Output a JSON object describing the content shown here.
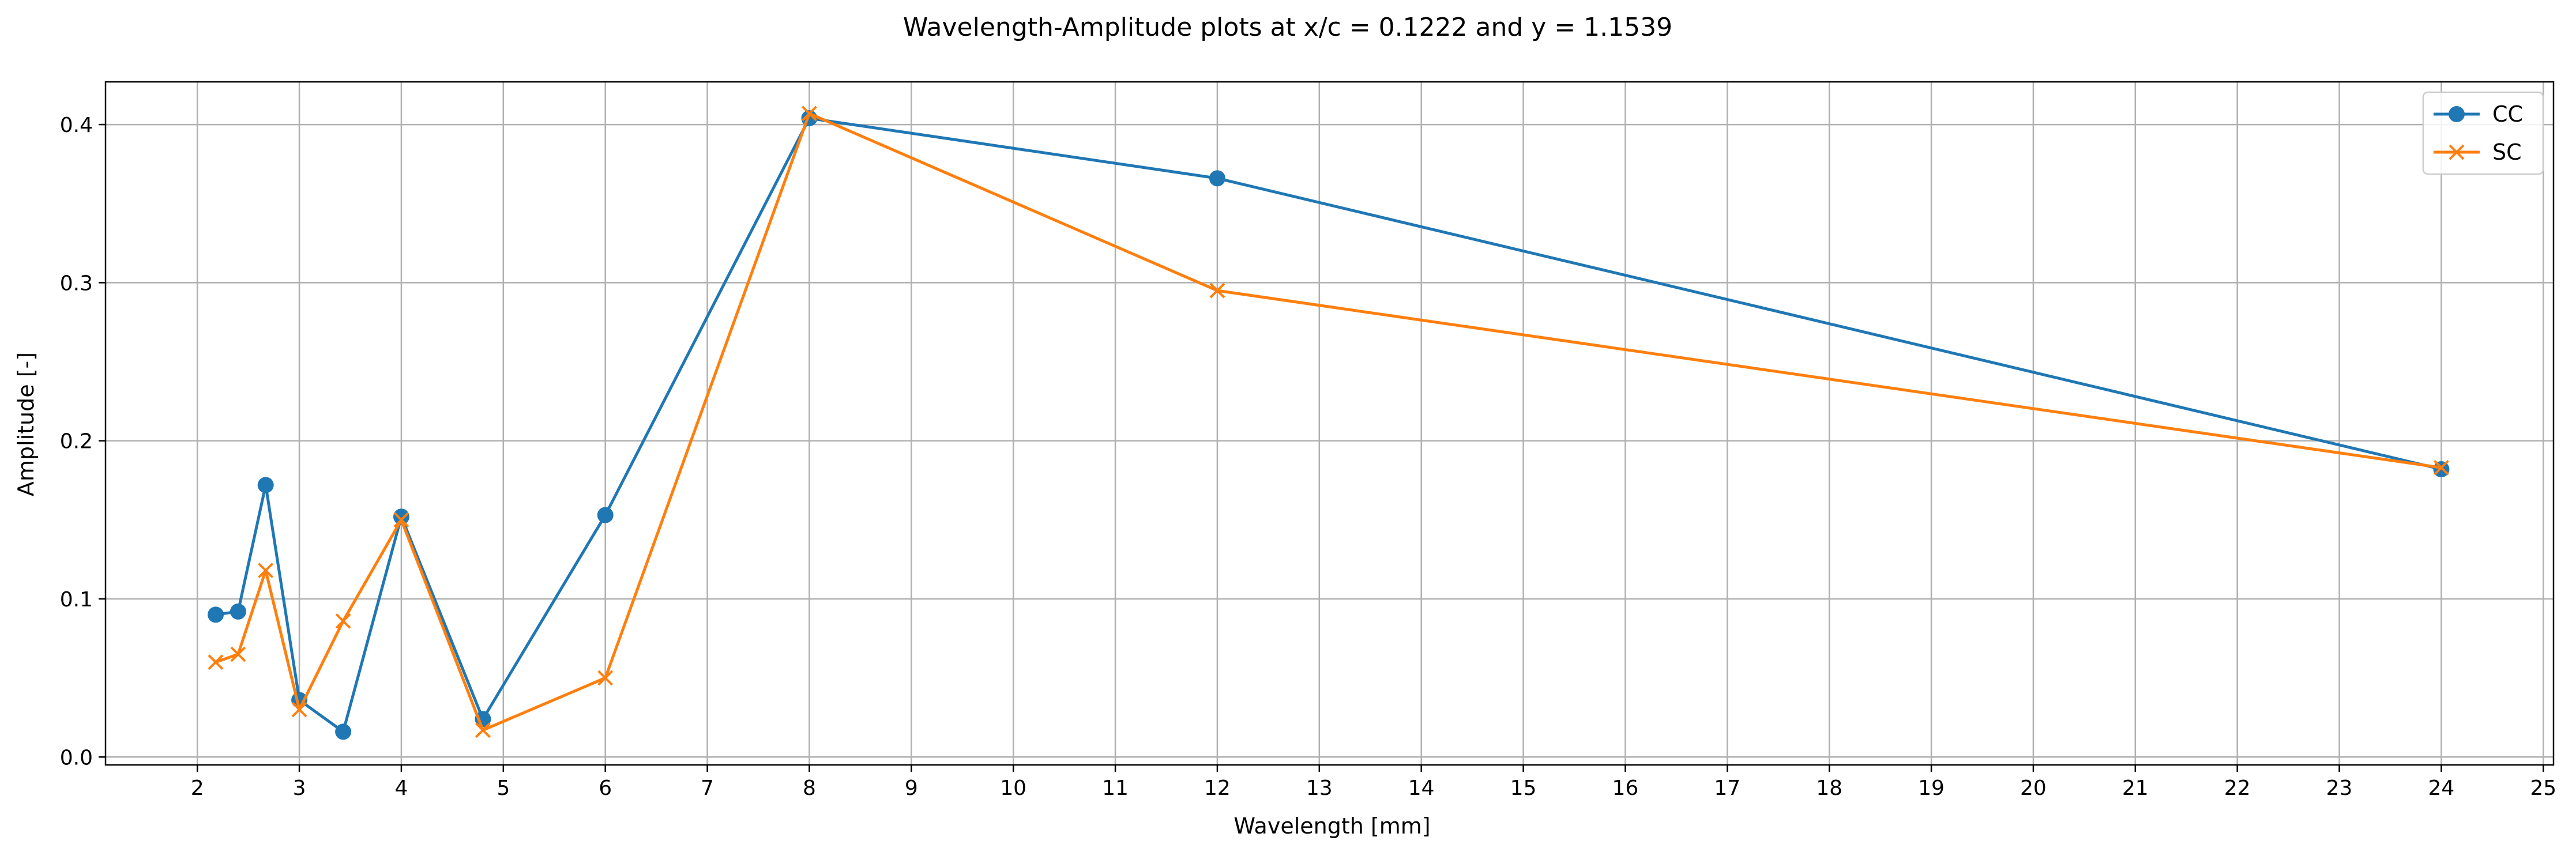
{
  "chart_data": {
    "type": "line",
    "title": "Wavelength-Amplitude plots at x/c = 0.1222 and y = 1.1539",
    "xlabel": "Wavelength [mm]",
    "ylabel": "Amplitude [-]",
    "xlim": [
      1.1,
      25.1
    ],
    "ylim": [
      -0.005,
      0.427
    ],
    "xticks": [
      2,
      3,
      4,
      5,
      6,
      7,
      8,
      9,
      10,
      11,
      12,
      13,
      14,
      15,
      16,
      17,
      18,
      19,
      20,
      21,
      22,
      23,
      24,
      25
    ],
    "yticks": [
      0.0,
      0.1,
      0.2,
      0.3,
      0.4
    ],
    "ytick_labels": [
      "0.0",
      "0.1",
      "0.2",
      "0.3",
      "0.4"
    ],
    "grid": true,
    "legend_position": "top-right",
    "series": [
      {
        "name": "CC",
        "color": "#1f77b4",
        "marker": "circle",
        "x": [
          2.18,
          2.4,
          2.67,
          3.0,
          3.43,
          4.0,
          4.8,
          6.0,
          8.0,
          12.0,
          24.0
        ],
        "y": [
          0.09,
          0.092,
          0.172,
          0.036,
          0.016,
          0.152,
          0.024,
          0.153,
          0.404,
          0.366,
          0.182
        ]
      },
      {
        "name": "SC",
        "color": "#ff7f0e",
        "marker": "x",
        "x": [
          2.18,
          2.4,
          2.67,
          3.0,
          3.43,
          4.0,
          4.8,
          6.0,
          8.0,
          12.0,
          24.0
        ],
        "y": [
          0.06,
          0.065,
          0.118,
          0.03,
          0.086,
          0.15,
          0.017,
          0.05,
          0.407,
          0.295,
          0.183
        ]
      }
    ]
  }
}
